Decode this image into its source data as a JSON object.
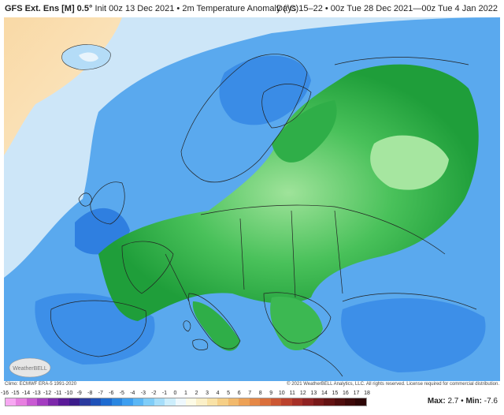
{
  "header": {
    "model": "GFS Ext. Ens [M] 0.5°",
    "init": "Init 00z 13 Dec 2021",
    "separator": "•",
    "field": "2m Temperature Anomaly (°C)",
    "valid": "Days 15–22 • 00z Tue 28 Dec 2021—00z Tue 4 Jan 2022"
  },
  "credits": {
    "climo": "Climo: ECMWF ERA-5 1991-2020",
    "copyright": "© 2021 WeatherBELL Analytics, LLC. All rights reserved. License required for commercial distribution.",
    "logo_text": "WeatherBELL"
  },
  "scale": {
    "labels": [
      "-16",
      "-15",
      "-14",
      "-13",
      "-12",
      "-11",
      "-10",
      "-9",
      "-8",
      "-7",
      "-6",
      "-5",
      "-4",
      "-3",
      "-2",
      "-1",
      "0",
      "1",
      "2",
      "3",
      "4",
      "5",
      "6",
      "7",
      "8",
      "9",
      "10",
      "11",
      "12",
      "13",
      "14",
      "15",
      "16",
      "17",
      "18"
    ],
    "colors": [
      "#f7a8f2",
      "#e77fe0",
      "#c85ad2",
      "#a33cc0",
      "#7d28aa",
      "#5b1a98",
      "#3c1c8a",
      "#2b3a9e",
      "#1f52b8",
      "#1e6bd0",
      "#2a86e0",
      "#3d9ff0",
      "#5bb7f5",
      "#7fcdf8",
      "#a6defa",
      "#cdeefc",
      "#eef8fd",
      "#fdfbe6",
      "#fbf0c8",
      "#f9e2a6",
      "#f6cf86",
      "#f2b96c",
      "#eda156",
      "#e58846",
      "#da6f3b",
      "#cc5733",
      "#bb422d",
      "#a63027",
      "#8f2222",
      "#781919",
      "#631212",
      "#4f0d0d",
      "#3d0909",
      "#2d0606"
    ],
    "max_label": "Max:",
    "max_value": "2.7",
    "min_label": "Min:",
    "min_value": "-7.6",
    "stat_separator": "•"
  },
  "legend_colors": {
    "ocean_neg_light": "#c9e4f7",
    "cold_blue": "#5aa9ee",
    "deep_blue": "#2f7fe0",
    "cold_green": "#4fbf5a",
    "deep_green": "#1f9e3a",
    "warm_peach": "#fbe2b8",
    "neutral": "#eef6fb"
  }
}
